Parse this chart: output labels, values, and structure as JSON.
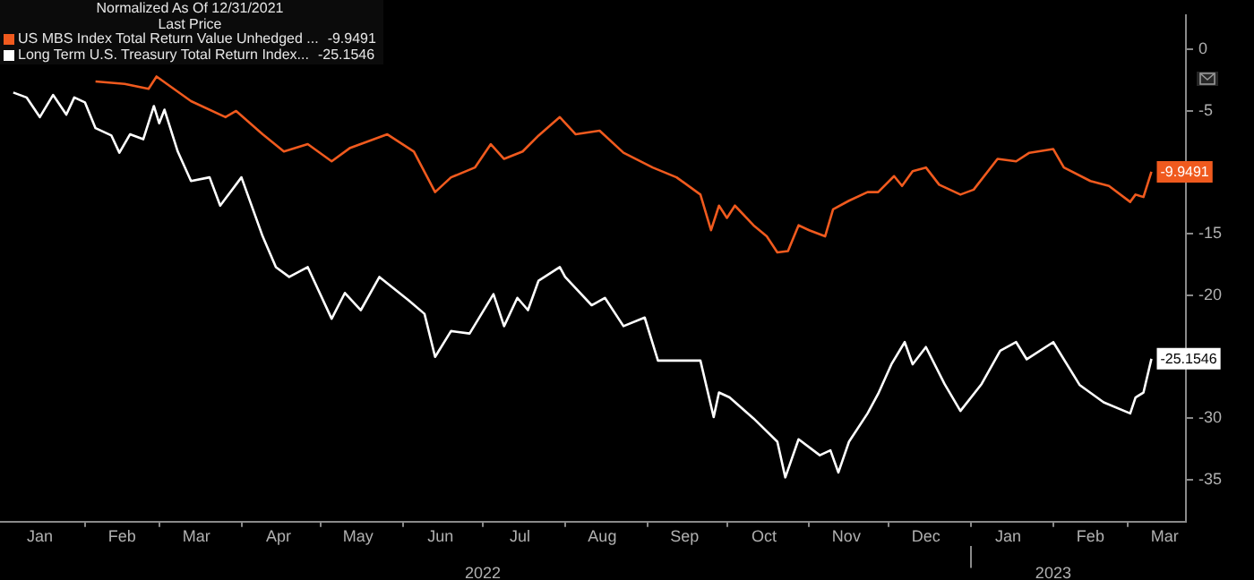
{
  "chart_data": {
    "type": "line",
    "title": "Normalized As Of 12/31/2021",
    "legend_title": "Last Price",
    "legend": "top left",
    "grid": false,
    "marker": "none",
    "xlim": [
      "2021-12-31",
      "2023-03-23"
    ],
    "xticks": [
      {
        "value": "2022-01-15",
        "label": "Jan"
      },
      {
        "value": "2022-02-01",
        "label": null
      },
      {
        "value": "2022-02-15",
        "label": "Feb"
      },
      {
        "value": "2022-03-01",
        "label": null
      },
      {
        "value": "2022-03-15",
        "label": "Mar"
      },
      {
        "value": "2022-04-01",
        "label": null
      },
      {
        "value": "2022-04-15",
        "label": "Apr"
      },
      {
        "value": "2022-05-01",
        "label": null
      },
      {
        "value": "2022-05-15",
        "label": "May"
      },
      {
        "value": "2022-06-01",
        "label": null
      },
      {
        "value": "2022-06-15",
        "label": "Jun"
      },
      {
        "value": "2022-07-01",
        "label": null
      },
      {
        "value": "2022-07-15",
        "label": "Jul"
      },
      {
        "value": "2022-08-01",
        "label": null
      },
      {
        "value": "2022-08-15",
        "label": "Aug"
      },
      {
        "value": "2022-09-01",
        "label": null
      },
      {
        "value": "2022-09-15",
        "label": "Sep"
      },
      {
        "value": "2022-10-01",
        "label": null
      },
      {
        "value": "2022-10-15",
        "label": "Oct"
      },
      {
        "value": "2022-11-01",
        "label": null
      },
      {
        "value": "2022-11-15",
        "label": "Nov"
      },
      {
        "value": "2022-12-01",
        "label": null
      },
      {
        "value": "2022-12-15",
        "label": "Dec"
      },
      {
        "value": "2023-01-01",
        "label": null
      },
      {
        "value": "2023-01-15",
        "label": "Jan"
      },
      {
        "value": "2023-02-01",
        "label": null
      },
      {
        "value": "2023-02-15",
        "label": "Feb"
      },
      {
        "value": "2023-03-01",
        "label": null
      },
      {
        "value": "2023-03-15",
        "label": "Mar"
      }
    ],
    "x2lim": [
      "2021-12-31",
      "2023-03-23"
    ],
    "x2ticks": [
      {
        "value": "2022-07-01",
        "label": "2022"
      },
      {
        "value": "2023-01-01",
        "label": null
      },
      {
        "value": "2023-02-01",
        "label": "2023"
      }
    ],
    "ylim": [
      -38.4,
      2.8
    ],
    "yticks": [
      0,
      -5,
      {
        "value": -10,
        "label": null
      },
      -15,
      -20,
      {
        "value": -25,
        "label": null
      },
      -30,
      -35
    ],
    "series": [
      {
        "name": "US MBS Index Total Return Value Unhedged ...",
        "color": "#f05a1e",
        "x": [
          "2022-02-05",
          "2022-02-16",
          "2022-02-25",
          "2022-02-28",
          "2022-03-13",
          "2022-03-26",
          "2022-03-30",
          "2022-04-09",
          "2022-04-17",
          "2022-04-26",
          "2022-05-05",
          "2022-05-12",
          "2022-05-26",
          "2022-06-05",
          "2022-06-13",
          "2022-06-19",
          "2022-06-28",
          "2022-07-04",
          "2022-07-09",
          "2022-07-16",
          "2022-07-22",
          "2022-07-30",
          "2022-08-05",
          "2022-08-14",
          "2022-08-23",
          "2022-09-03",
          "2022-09-12",
          "2022-09-21",
          "2022-09-25",
          "2022-09-28",
          "2022-10-01",
          "2022-10-04",
          "2022-10-11",
          "2022-10-16",
          "2022-10-20",
          "2022-10-24",
          "2022-10-28",
          "2022-11-01",
          "2022-11-07",
          "2022-11-10",
          "2022-11-16",
          "2022-11-23",
          "2022-11-27",
          "2022-12-03",
          "2022-12-06",
          "2022-12-10",
          "2022-12-15",
          "2022-12-20",
          "2022-12-28",
          "2023-01-02",
          "2023-01-11",
          "2023-01-18",
          "2023-01-23",
          "2023-02-01",
          "2023-02-05",
          "2023-02-15",
          "2023-02-22",
          "2023-03-02",
          "2023-03-04",
          "2023-03-07",
          "2023-03-10"
        ],
        "values": [
          -2.6,
          -2.8,
          -3.2,
          -2.2,
          -4.2,
          -5.5,
          -5.0,
          -6.9,
          -8.3,
          -7.7,
          -9.1,
          -8.0,
          -6.9,
          -8.3,
          -11.6,
          -10.4,
          -9.6,
          -7.7,
          -8.9,
          -8.3,
          -7.0,
          -5.5,
          -6.9,
          -6.6,
          -8.4,
          -9.6,
          -10.4,
          -11.8,
          -14.7,
          -12.7,
          -13.7,
          -12.7,
          -14.3,
          -15.2,
          -16.5,
          -16.4,
          -14.3,
          -14.7,
          -15.2,
          -13.0,
          -12.3,
          -11.6,
          -11.6,
          -10.3,
          -11.1,
          -9.9,
          -9.6,
          -11.0,
          -11.8,
          -11.4,
          -8.9,
          -9.1,
          -8.4,
          -8.1,
          -9.6,
          -10.7,
          -11.1,
          -12.4,
          -11.8,
          -12.0,
          -9.9491
        ],
        "value_labels": [
          null,
          null,
          null,
          null,
          null,
          null,
          null,
          null,
          null,
          null,
          null,
          null,
          null,
          null,
          null,
          null,
          null,
          null,
          null,
          null,
          null,
          null,
          null,
          null,
          null,
          null,
          null,
          null,
          null,
          null,
          null,
          null,
          null,
          null,
          null,
          null,
          null,
          null,
          null,
          null,
          null,
          null,
          null,
          null,
          null,
          null,
          null,
          null,
          null,
          null,
          null,
          null,
          null,
          null,
          null,
          null,
          null,
          null,
          null,
          null,
          "-9.9491"
        ]
      },
      {
        "name": "Long Term U.S. Treasury Total Return Index...",
        "color": "#ffffff",
        "x": [
          "2022-01-05",
          "2022-01-10",
          "2022-01-15",
          "2022-01-20",
          "2022-01-25",
          "2022-01-28",
          "2022-02-01",
          "2022-02-05",
          "2022-02-11",
          "2022-02-14",
          "2022-02-18",
          "2022-02-23",
          "2022-02-27",
          "2022-03-01",
          "2022-03-03",
          "2022-03-08",
          "2022-03-13",
          "2022-03-20",
          "2022-03-24",
          "2022-04-01",
          "2022-04-09",
          "2022-04-14",
          "2022-04-19",
          "2022-04-26",
          "2022-05-05",
          "2022-05-10",
          "2022-05-16",
          "2022-05-23",
          "2022-06-03",
          "2022-06-09",
          "2022-06-13",
          "2022-06-19",
          "2022-06-26",
          "2022-07-05",
          "2022-07-09",
          "2022-07-14",
          "2022-07-18",
          "2022-07-22",
          "2022-07-30",
          "2022-08-01",
          "2022-08-11",
          "2022-08-16",
          "2022-08-23",
          "2022-08-31",
          "2022-09-05",
          "2022-09-14",
          "2022-09-21",
          "2022-09-26",
          "2022-09-28",
          "2022-10-02",
          "2022-10-11",
          "2022-10-20",
          "2022-10-23",
          "2022-10-28",
          "2022-11-05",
          "2022-11-09",
          "2022-11-12",
          "2022-11-16",
          "2022-11-23",
          "2022-11-27",
          "2022-12-02",
          "2022-12-07",
          "2022-12-10",
          "2022-12-15",
          "2022-12-22",
          "2022-12-28",
          "2023-01-05",
          "2023-01-12",
          "2023-01-18",
          "2023-01-22",
          "2023-02-01",
          "2023-02-11",
          "2023-02-20",
          "2023-03-02",
          "2023-03-04",
          "2023-03-07",
          "2023-03-10"
        ],
        "values": [
          -3.5,
          -3.9,
          -5.5,
          -3.7,
          -5.3,
          -3.9,
          -4.3,
          -6.4,
          -7.0,
          -8.4,
          -6.9,
          -7.3,
          -4.6,
          -6.0,
          -4.9,
          -8.3,
          -10.7,
          -10.4,
          -12.7,
          -10.4,
          -15.2,
          -17.7,
          -18.5,
          -17.7,
          -21.9,
          -19.8,
          -21.2,
          -18.5,
          -20.4,
          -21.5,
          -25.0,
          -22.9,
          -23.1,
          -19.9,
          -22.5,
          -20.2,
          -21.2,
          -18.8,
          -17.7,
          -18.5,
          -20.8,
          -20.2,
          -22.5,
          -21.8,
          -25.3,
          -25.3,
          -25.3,
          -29.9,
          -27.9,
          -28.3,
          -30.0,
          -31.9,
          -34.8,
          -31.7,
          -33.0,
          -32.6,
          -34.4,
          -31.9,
          -29.6,
          -28.0,
          -25.6,
          -23.8,
          -25.6,
          -24.2,
          -27.2,
          -29.4,
          -27.2,
          -24.5,
          -23.8,
          -25.2,
          -23.8,
          -27.3,
          -28.7,
          -29.6,
          -28.3,
          -27.9,
          -25.1546
        ],
        "value_labels": [
          null,
          null,
          null,
          null,
          null,
          null,
          null,
          null,
          null,
          null,
          null,
          null,
          null,
          null,
          null,
          null,
          null,
          null,
          null,
          null,
          null,
          null,
          null,
          null,
          null,
          null,
          null,
          null,
          null,
          null,
          null,
          null,
          null,
          null,
          null,
          null,
          null,
          null,
          null,
          null,
          null,
          null,
          null,
          null,
          null,
          null,
          null,
          null,
          null,
          null,
          null,
          null,
          null,
          null,
          null,
          null,
          null,
          null,
          null,
          null,
          null,
          null,
          null,
          null,
          null,
          null,
          null,
          null,
          null,
          null,
          null,
          null,
          null,
          null,
          null,
          null,
          "-25.1546"
        ]
      }
    ]
  }
}
